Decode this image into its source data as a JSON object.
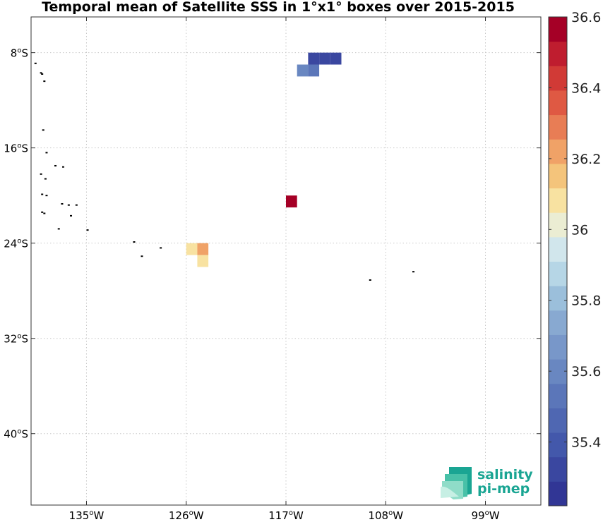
{
  "chart_data": {
    "type": "heatmap",
    "title": "Temporal mean of Satellite SSS in 1°x1° boxes over 2015-2015",
    "xlim": [
      -140,
      -94
    ],
    "ylim": [
      -46,
      -5
    ],
    "x_ticks": [
      {
        "value": -135,
        "deg": "135",
        "hemi": "W"
      },
      {
        "value": -126,
        "deg": "126",
        "hemi": "W"
      },
      {
        "value": -117,
        "deg": "117",
        "hemi": "W"
      },
      {
        "value": -108,
        "deg": "108",
        "hemi": "W"
      },
      {
        "value": -99,
        "deg": "99",
        "hemi": "W"
      }
    ],
    "y_ticks": [
      {
        "value": -8,
        "deg": "8",
        "hemi": "S"
      },
      {
        "value": -16,
        "deg": "16",
        "hemi": "S"
      },
      {
        "value": -24,
        "deg": "24",
        "hemi": "S"
      },
      {
        "value": -32,
        "deg": "32",
        "hemi": "S"
      },
      {
        "value": -40,
        "deg": "40",
        "hemi": "S"
      }
    ],
    "grid": true,
    "cells": [
      {
        "lon": -114.5,
        "lat": -8.5,
        "value": 35.3
      },
      {
        "lon": -113.5,
        "lat": -8.5,
        "value": 35.3
      },
      {
        "lon": -112.5,
        "lat": -8.5,
        "value": 35.3
      },
      {
        "lon": -115.5,
        "lat": -9.5,
        "value": 35.6
      },
      {
        "lon": -114.5,
        "lat": -9.5,
        "value": 35.5
      },
      {
        "lon": -116.5,
        "lat": -20.5,
        "value": 36.55
      },
      {
        "lon": -125.5,
        "lat": -24.5,
        "value": 36.1
      },
      {
        "lon": -124.5,
        "lat": -24.5,
        "value": 36.2
      },
      {
        "lon": -124.5,
        "lat": -25.5,
        "value": 36.05
      }
    ],
    "land": [
      {
        "lon": -139.6,
        "lat": -8.9
      },
      {
        "lon": -139.1,
        "lat": -9.7
      },
      {
        "lon": -139.0,
        "lat": -9.8
      },
      {
        "lon": -138.8,
        "lat": -10.4
      },
      {
        "lon": -138.9,
        "lat": -14.5
      },
      {
        "lon": -138.6,
        "lat": -16.4
      },
      {
        "lon": -137.8,
        "lat": -17.5
      },
      {
        "lon": -137.1,
        "lat": -17.6
      },
      {
        "lon": -139.1,
        "lat": -18.2
      },
      {
        "lon": -138.7,
        "lat": -18.6
      },
      {
        "lon": -139.0,
        "lat": -19.9
      },
      {
        "lon": -138.6,
        "lat": -20.0
      },
      {
        "lon": -137.2,
        "lat": -20.7
      },
      {
        "lon": -136.6,
        "lat": -20.8
      },
      {
        "lon": -135.9,
        "lat": -20.8
      },
      {
        "lon": -139.0,
        "lat": -21.4
      },
      {
        "lon": -138.8,
        "lat": -21.5
      },
      {
        "lon": -136.4,
        "lat": -21.7
      },
      {
        "lon": -137.5,
        "lat": -22.8
      },
      {
        "lon": -134.9,
        "lat": -22.9
      },
      {
        "lon": -130.7,
        "lat": -23.9
      },
      {
        "lon": -128.3,
        "lat": -24.4
      },
      {
        "lon": -130.0,
        "lat": -25.1
      },
      {
        "lon": -109.4,
        "lat": -27.1
      },
      {
        "lon": -105.5,
        "lat": -26.4
      }
    ],
    "colorbar": {
      "vmin": 35.22,
      "vmax": 36.6,
      "levels": 20,
      "ticks": [
        {
          "value": 36.6,
          "label": "36.6"
        },
        {
          "value": 36.4,
          "label": "36.4"
        },
        {
          "value": 36.2,
          "label": "36.2"
        },
        {
          "value": 36.0,
          "label": "36"
        },
        {
          "value": 35.8,
          "label": "35.8"
        },
        {
          "value": 35.6,
          "label": "35.6"
        },
        {
          "value": 35.4,
          "label": "35.4"
        }
      ],
      "colors": [
        "#313695",
        "#3a47a0",
        "#4358ab",
        "#4f67b2",
        "#5b76b9",
        "#6987c1",
        "#7897c9",
        "#88a9d1",
        "#9bbfdb",
        "#b6d6e6",
        "#d1e6ec",
        "#ebedd3",
        "#f8e2a1",
        "#f4c47b",
        "#f0a267",
        "#e87d55",
        "#df5943",
        "#d13a36",
        "#bf1d2f",
        "#a50026"
      ]
    }
  },
  "logo": {
    "line1": "salinity",
    "line2": "pi-mep"
  }
}
